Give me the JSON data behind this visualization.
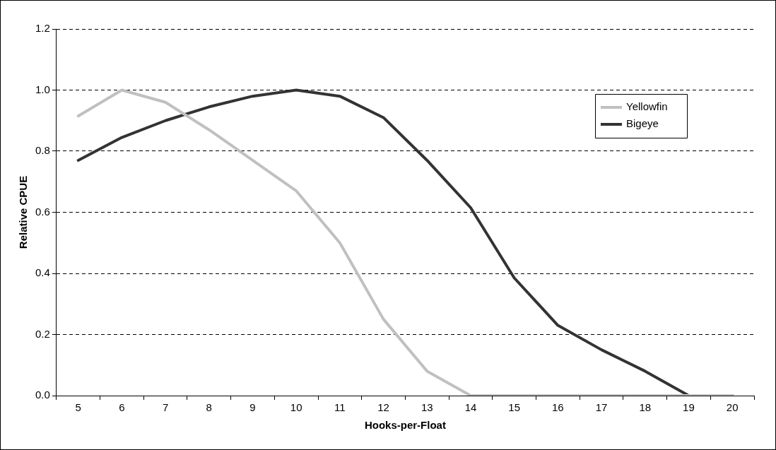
{
  "chart_data": {
    "type": "line",
    "xlabel": "Hooks-per-Float",
    "ylabel": "Relative CPUE",
    "categories": [
      "5",
      "6",
      "7",
      "8",
      "9",
      "10",
      "11",
      "12",
      "13",
      "14",
      "15",
      "16",
      "17",
      "18",
      "19",
      "20"
    ],
    "series": [
      {
        "name": "Yellowfin",
        "color": "#c0c0c0",
        "values": [
          0.915,
          1.0,
          0.96,
          0.87,
          0.77,
          0.67,
          0.5,
          0.25,
          0.08,
          0,
          0,
          0,
          0,
          0,
          0,
          0
        ]
      },
      {
        "name": "Bigeye",
        "color": "#333333",
        "values": [
          0.77,
          0.845,
          0.9,
          0.945,
          0.98,
          1.0,
          0.98,
          0.91,
          0.77,
          0.615,
          0.385,
          0.23,
          0.15,
          0.08,
          0,
          0
        ]
      }
    ],
    "ylim": [
      0,
      1.2
    ],
    "yticks": [
      {
        "value": 0,
        "label": "0.0"
      },
      {
        "value": 0.2,
        "label": "0.2"
      },
      {
        "value": 0.4,
        "label": "0.4"
      },
      {
        "value": 0.6,
        "label": "0.6"
      },
      {
        "value": 0.8,
        "label": "0.8"
      },
      {
        "value": 1.0,
        "label": "1.0"
      },
      {
        "value": 1.2,
        "label": "1.2"
      }
    ],
    "grid": "y",
    "legend": "top right",
    "marker": "none",
    "line_style": "solid"
  }
}
